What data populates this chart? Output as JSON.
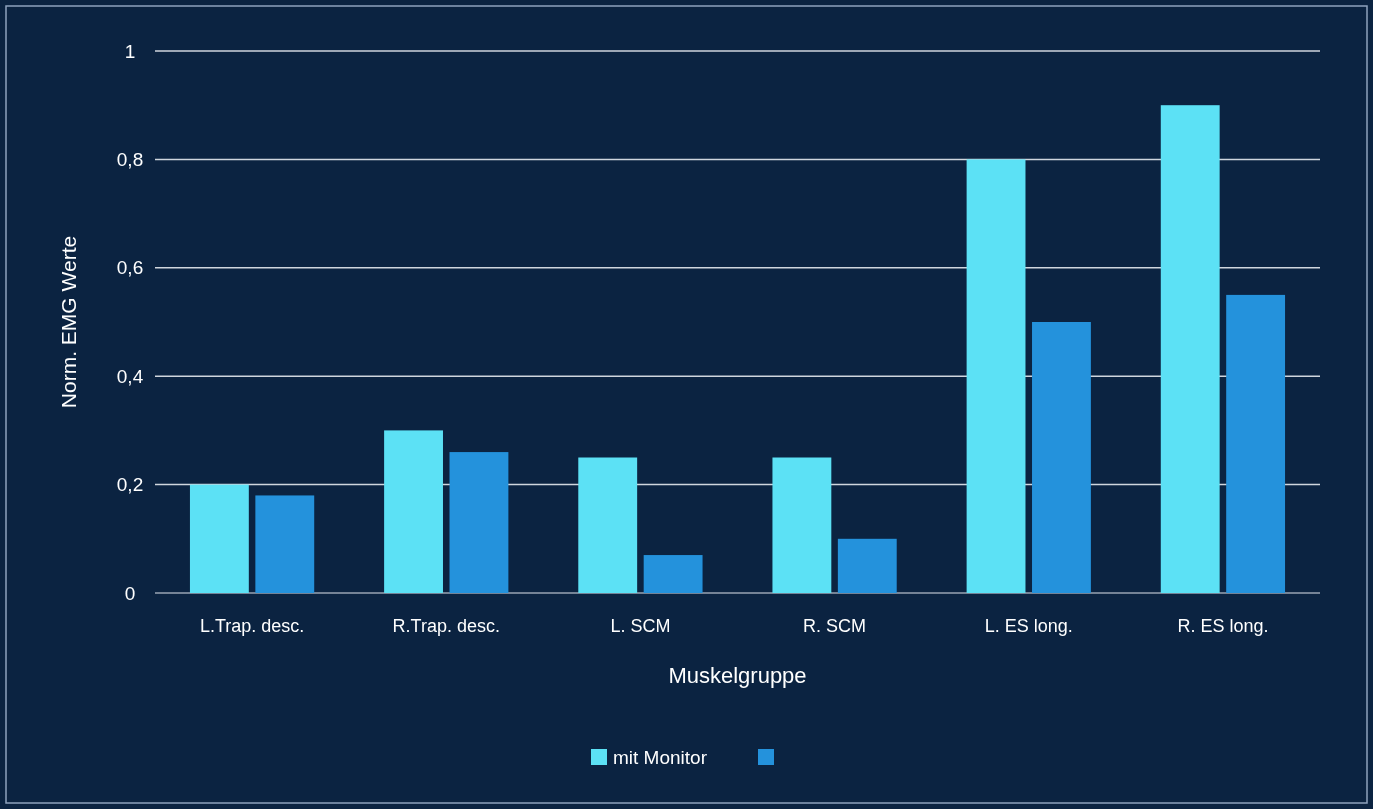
{
  "chart_data": {
    "type": "bar",
    "xlabel": "Muskelgruppe",
    "ylabel": "Norm. EMG Werte",
    "categories": [
      "L.Trap. desc.",
      "R.Trap. desc.",
      "L. SCM",
      "R. SCM",
      "L. ES long.",
      "R. ES long."
    ],
    "series": [
      {
        "name": "mit Monitor",
        "color": "#5ce1f5",
        "values": [
          0.2,
          0.3,
          0.25,
          0.25,
          0.8,
          0.9
        ]
      },
      {
        "color": "#2492dc",
        "values": [
          0.18,
          0.26,
          0.07,
          0.1,
          0.5,
          0.55
        ]
      }
    ],
    "ylim": [
      0,
      1
    ],
    "yticks": [
      0,
      {
        "value": 0.2,
        "label": "0,2"
      },
      {
        "value": 0.4,
        "label": "0,4"
      },
      {
        "value": 0.6,
        "label": "0,6"
      },
      {
        "value": 0.8,
        "label": "0,8"
      },
      1
    ],
    "grid": "y",
    "legend": "bottom"
  }
}
